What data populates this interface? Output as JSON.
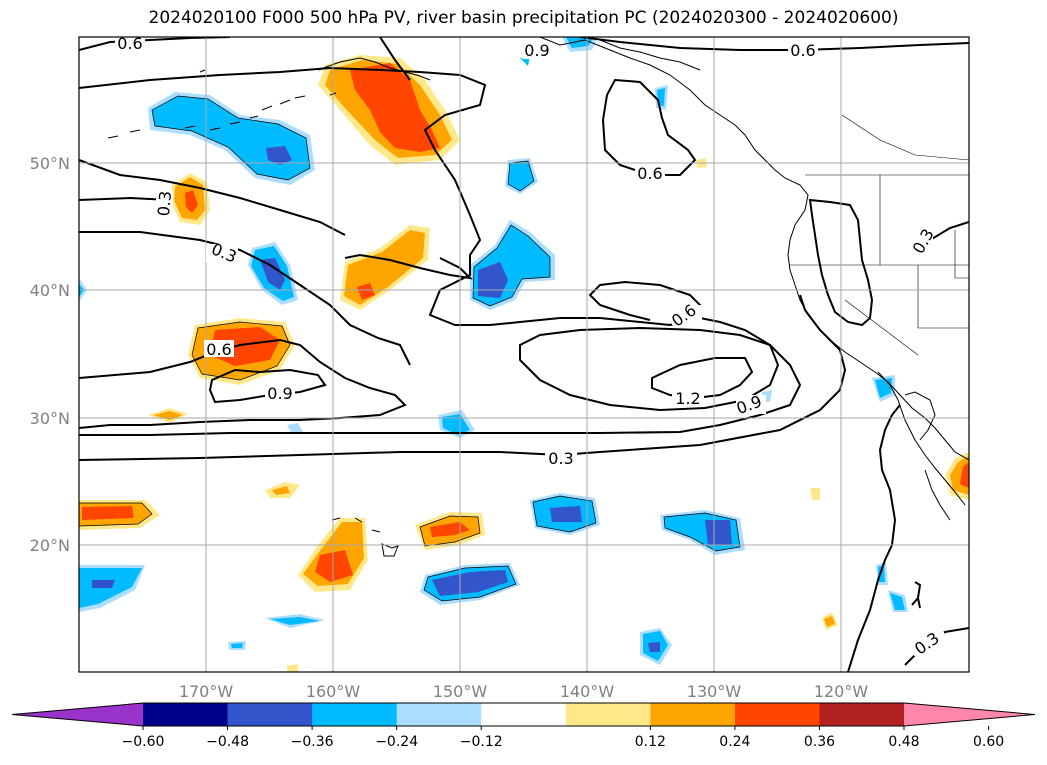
{
  "title": "2024020100 F000 500 hPa PV, river basin precipitation PC (2024020300 - 2024020600)",
  "map": {
    "lat_labels": [
      "50°N",
      "40°N",
      "30°N",
      "20°N"
    ],
    "lon_labels": [
      "170°W",
      "160°W",
      "150°W",
      "140°W",
      "130°W",
      "120°W"
    ],
    "contour_labels": [
      "0.6",
      "0.9",
      "0.6",
      "0.6",
      "0.3",
      "0.3",
      "0.6",
      "0.6",
      "0.9",
      "1.2",
      "0.9",
      "0.3",
      "0.3",
      "0.3"
    ]
  },
  "colorbar": {
    "colors": [
      "#9933cc",
      "#000088",
      "#3355cc",
      "#00bbff",
      "#aaddff",
      "#ffffff",
      "#ffe88a",
      "#ffa500",
      "#ff4500",
      "#b22222",
      "#ff88aa"
    ],
    "tick_labels": [
      "−0.60",
      "−0.48",
      "−0.36",
      "−0.24",
      "−0.12",
      "0.12",
      "0.24",
      "0.36",
      "0.48",
      "0.60"
    ]
  }
}
